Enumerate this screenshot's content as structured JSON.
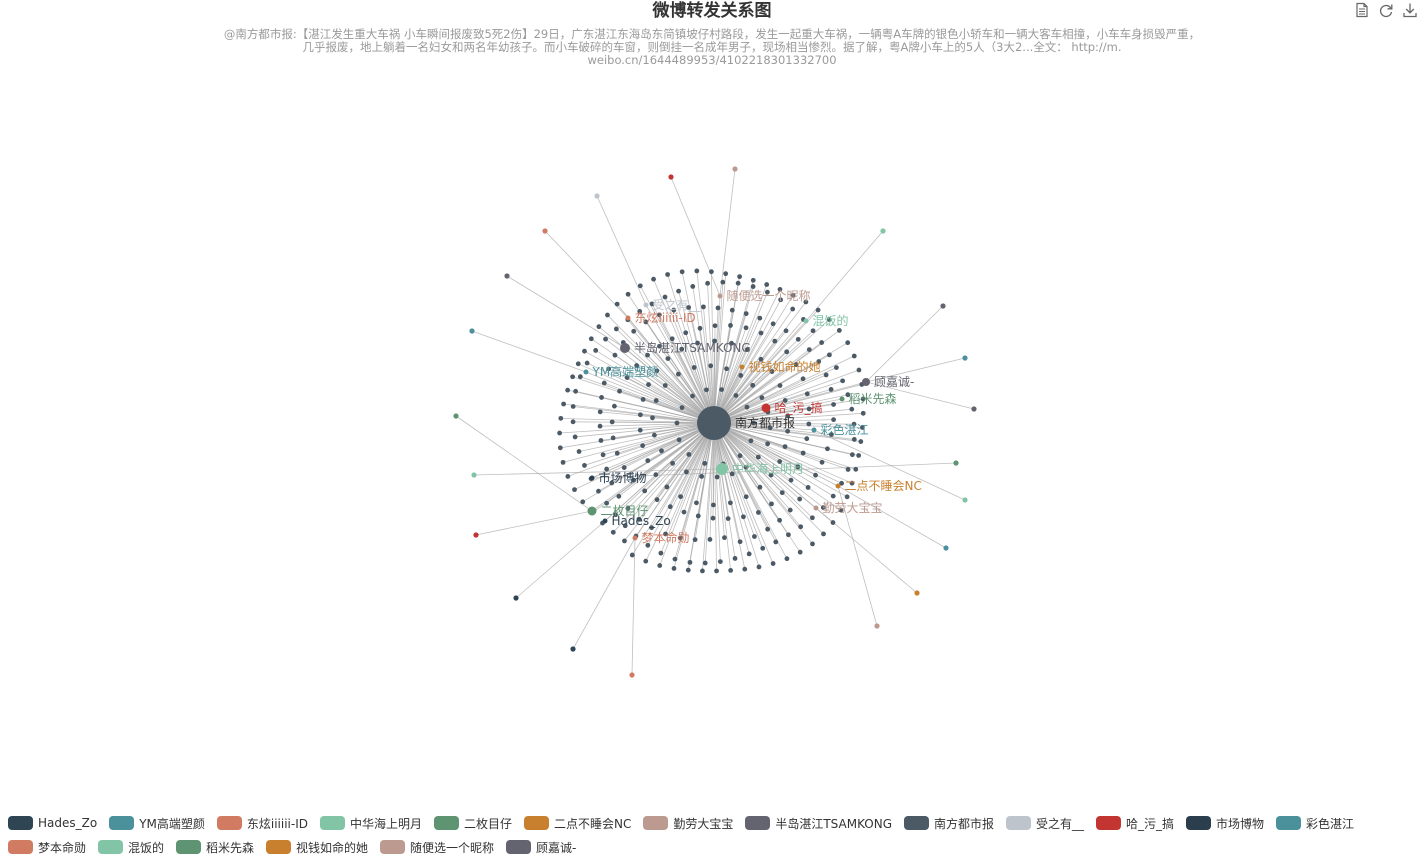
{
  "title": "微博转发关系图",
  "subtitle_lines": [
    "@南方都市报:【湛江发生重大车祸 小车瞬间报废致5死2伤】29日，广东湛江东海岛东简镇坡仔村路段，发生一起重大车祸，一辆粤A车牌的银色小轿车和一辆大客车相撞，小车车身损毁严重，",
    "几乎报废，地上躺着一名妇女和两名年幼孩子。而小车破碎的车窗，则倒挂一名成年男子，现场相当惨烈。据了解，粤A牌小车上的5人（3大2...全文： http://m.",
    "weibo.cn/1644489953/4102218301332700"
  ],
  "toolbox": [
    "data-view-icon",
    "restore-icon",
    "save-image-icon"
  ],
  "chart_data": {
    "type": "graph",
    "title": "微博转发关系图",
    "root": "南方都市报",
    "categories": [
      {
        "name": "Hades_Zo",
        "color": "#2f4554"
      },
      {
        "name": "YM高端塑颜",
        "color": "#4a919b"
      },
      {
        "name": "东炫iiiiii-ID",
        "color": "#d17b63"
      },
      {
        "name": "中华海上明月",
        "color": "#82c4a6"
      },
      {
        "name": "二枚目仔",
        "color": "#5e9471"
      },
      {
        "name": "二点不睡会NC",
        "color": "#c8802f"
      },
      {
        "name": "勤劳大宝宝",
        "color": "#bc9a90"
      },
      {
        "name": "半岛湛江TSAMKONG",
        "color": "#646470"
      },
      {
        "name": "南方都市报",
        "color": "#4c5a66"
      },
      {
        "name": "受之有__",
        "color": "#bdc4cb"
      },
      {
        "name": "哈_污_搞",
        "color": "#c23531"
      },
      {
        "name": "市场博物",
        "color": "#2b3e4e"
      },
      {
        "name": "彩色湛江",
        "color": "#4a919b"
      },
      {
        "name": "梦本命勋",
        "color": "#d17b63"
      },
      {
        "name": "混饭的",
        "color": "#82c4a6"
      },
      {
        "name": "稻米先森",
        "color": "#5e9471"
      },
      {
        "name": "视钱如命的她",
        "color": "#c8802f"
      },
      {
        "name": "随便选一个昵称",
        "color": "#bc9a90"
      },
      {
        "name": "顾嘉诚-",
        "color": "#646470"
      }
    ],
    "hub_nodes": [
      {
        "name": "南方都市报",
        "category": "南方都市报",
        "size": 30,
        "label": "南方都市报"
      },
      {
        "name": "半岛湛江TSAMKONG",
        "category": "半岛湛江TSAMKONG",
        "size": 10,
        "label": "半岛湛江TSAMKONG"
      },
      {
        "name": "东炫iiiiii-ID",
        "category": "东炫iiiiii-ID",
        "size": 5,
        "label": "东炫iiiiii-ID"
      },
      {
        "name": "受之有__",
        "category": "受之有__",
        "size": 5,
        "label": "受之有__"
      },
      {
        "name": "随便选一个昵称",
        "category": "随便选一个昵称",
        "size": 5,
        "label": "随便选一个昵称"
      },
      {
        "name": "混饭的",
        "category": "混饭的",
        "size": 5,
        "label": "混饭的"
      },
      {
        "name": "YM高端塑颜",
        "category": "YM高端塑颜",
        "size": 5,
        "label": "YM高端塑颜"
      },
      {
        "name": "视钱如命的她",
        "category": "视钱如命的她",
        "size": 5,
        "label": "视钱如命的她"
      },
      {
        "name": "顾嘉诚-",
        "category": "顾嘉诚-",
        "size": 8,
        "label": "顾嘉诚-"
      },
      {
        "name": "稻米先森",
        "category": "稻米先森",
        "size": 5,
        "label": "稻米先森"
      },
      {
        "name": "哈_污_搞",
        "category": "哈_污_搞",
        "size": 9,
        "label": "哈_污_搞"
      },
      {
        "name": "彩色湛江",
        "category": "彩色湛江",
        "size": 5,
        "label": "彩色湛江"
      },
      {
        "name": "中华海上明月",
        "category": "中华海上明月",
        "size": 12,
        "label": "中华海上明月"
      },
      {
        "name": "二点不睡会NC",
        "category": "二点不睡会NC",
        "size": 5,
        "label": "二点不睡会NC"
      },
      {
        "name": "勤劳大宝宝",
        "category": "勤劳大宝宝",
        "size": 5,
        "label": "勤劳大宝宝"
      },
      {
        "name": "市场博物",
        "category": "市场博物",
        "size": 5,
        "label": "市场博物"
      },
      {
        "name": "二枚目仔",
        "category": "二枚目仔",
        "size": 9,
        "label": "二枚目仔"
      },
      {
        "name": "Hades_Zo",
        "category": "Hades_Zo",
        "size": 5,
        "label": "Hades_Zo"
      },
      {
        "name": "梦本命勋",
        "category": "梦本命勋",
        "size": 5,
        "label": "梦本命勋"
      }
    ],
    "edges_from_hubs": [
      {
        "from": "受之有__",
        "category": "受之有__"
      },
      {
        "from": "随便选一个昵称",
        "category": "哈_污_搞"
      },
      {
        "from": "随便选一个昵称",
        "category": "勤劳大宝宝"
      },
      {
        "from": "东炫iiiiii-ID",
        "category": "东炫iiiiii-ID"
      },
      {
        "from": "半岛湛江TSAMKONG",
        "category": "半岛湛江TSAMKONG"
      },
      {
        "from": "YM高端塑颜",
        "category": "YM高端塑颜"
      },
      {
        "from": "混饭的",
        "category": "混饭的"
      },
      {
        "from": "顾嘉诚-",
        "category": "顾嘉诚-"
      },
      {
        "from": "顾嘉诚-",
        "category": "彩色湛江"
      },
      {
        "from": "顾嘉诚-",
        "category": "顾嘉诚-"
      },
      {
        "from": "市场博物",
        "category": "二枚目仔"
      },
      {
        "from": "市场博物",
        "category": "中华海上明月"
      },
      {
        "from": "中华海上明月",
        "category": "中华海上明月"
      },
      {
        "from": "彩色湛江",
        "category": "彩色湛江"
      },
      {
        "from": "二点不睡会NC",
        "category": "二点不睡会NC"
      },
      {
        "from": "勤劳大宝宝",
        "category": "勤劳大宝宝"
      },
      {
        "from": "二点不睡会NC",
        "category": "哈_污_搞"
      },
      {
        "from": "二枚目仔",
        "category": "Hades_Zo"
      },
      {
        "from": "Hades_Zo",
        "category": "Hades_Zo"
      },
      {
        "from": "梦本命勋",
        "category": "梦本命勋"
      },
      {
        "from": "梦本命勋",
        "category": "二枚目仔"
      }
    ],
    "leaf_node_count": 280,
    "leaf_category": "南方都市报",
    "legend_position": "bottom"
  }
}
